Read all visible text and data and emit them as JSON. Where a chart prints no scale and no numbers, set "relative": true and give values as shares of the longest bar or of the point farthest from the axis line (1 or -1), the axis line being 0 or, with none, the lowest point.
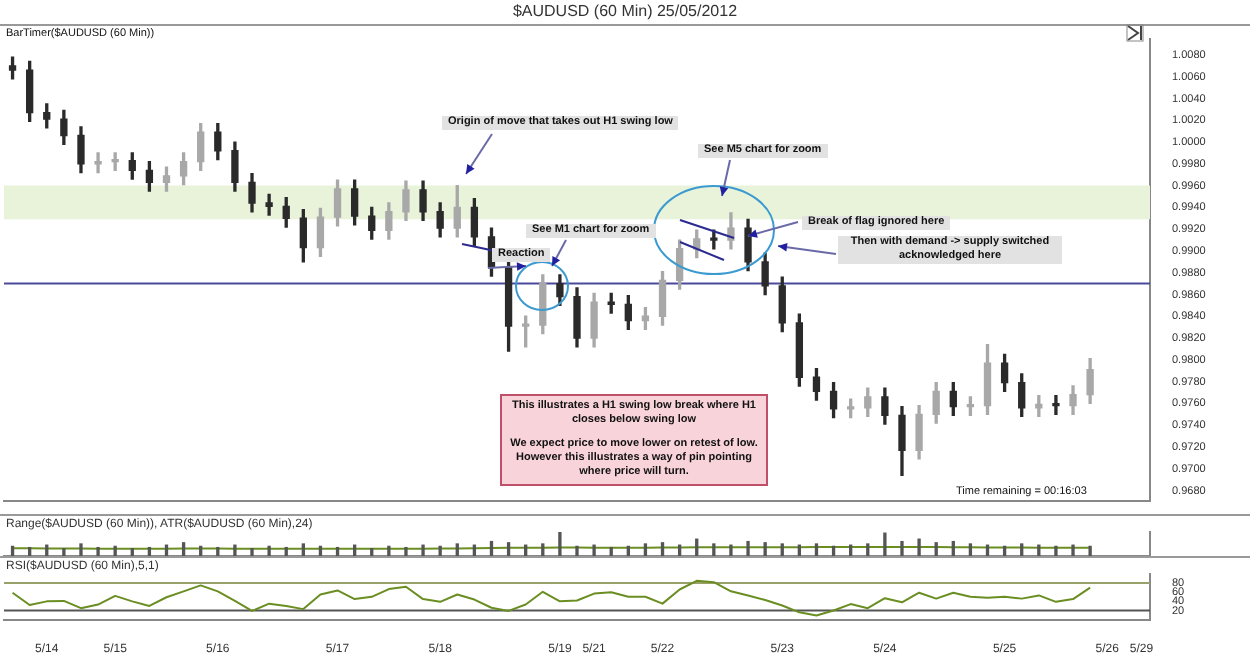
{
  "chart_data": [
    {
      "type": "candlestick",
      "title": "$AUDUSD (60 Min)  25/05/2012",
      "tick_labels": "y",
      "ylim": [
        0.967,
        1.0095
      ],
      "categories": [
        null,
        null,
        null,
        null,
        null,
        null,
        null,
        null,
        null,
        null,
        null,
        null,
        null,
        null,
        null,
        null,
        null,
        null,
        null,
        null,
        null,
        null,
        null,
        null,
        null,
        null,
        null,
        null,
        null,
        null,
        null,
        null,
        null,
        null,
        null,
        null,
        null,
        null,
        null,
        null,
        null,
        null,
        null,
        null,
        null,
        null,
        null,
        null,
        null,
        null,
        null,
        null,
        null,
        null,
        null,
        null,
        null,
        null,
        null,
        null,
        null,
        null,
        null,
        null,
        null,
        null,
        null
      ],
      "yticks": [
        {
          "value": 0.968,
          "label": "0.9680"
        },
        {
          "value": 0.97,
          "label": "0.9700"
        },
        {
          "value": 0.972,
          "label": "0.9720"
        },
        {
          "value": 0.974,
          "label": "0.9740"
        },
        {
          "value": 0.976,
          "label": "0.9760"
        },
        {
          "value": 0.978,
          "label": "0.9780"
        },
        {
          "value": 0.98,
          "label": "0.9800"
        },
        {
          "value": 0.982,
          "label": "0.9820"
        },
        {
          "value": 0.984,
          "label": "0.9840"
        },
        {
          "value": 0.986,
          "label": "0.9860"
        },
        {
          "value": 0.988,
          "label": "0.9880"
        },
        {
          "value": 0.99,
          "label": "0.9900"
        },
        {
          "value": 0.992,
          "label": "0.9920"
        },
        {
          "value": 0.994,
          "label": "0.9940"
        },
        {
          "value": 0.996,
          "label": "0.9960"
        },
        {
          "value": 0.998,
          "label": "0.9980"
        },
        {
          "value": 1.0,
          "label": "1.0000"
        },
        {
          "value": 1.002,
          "label": "1.0020"
        },
        {
          "value": 1.004,
          "label": "1.0040"
        },
        {
          "value": 1.006,
          "label": "1.0060"
        },
        {
          "value": 1.008,
          "label": "1.0080"
        }
      ],
      "ohlc": [
        [
          1.007,
          1.0078,
          1.0058,
          1.0066
        ],
        [
          1.0066,
          1.0074,
          1.0019,
          1.0027
        ],
        [
          1.0027,
          1.0035,
          1.0013,
          1.0021
        ],
        [
          1.0021,
          1.0029,
          0.9998,
          1.0006
        ],
        [
          1.0006,
          1.0014,
          0.9972,
          0.998
        ],
        [
          0.998,
          0.999,
          0.9972,
          0.9982
        ],
        [
          0.9982,
          0.999,
          0.9974,
          0.9983
        ],
        [
          0.9983,
          0.999,
          0.9966,
          0.9974
        ],
        [
          0.9974,
          0.9982,
          0.9955,
          0.9963
        ],
        [
          0.9963,
          0.9977,
          0.9955,
          0.9969
        ],
        [
          0.9969,
          0.999,
          0.9961,
          0.9982
        ],
        [
          0.9982,
          1.0017,
          0.9974,
          1.0009
        ],
        [
          1.0009,
          1.0017,
          0.9984,
          0.9992
        ],
        [
          0.9992,
          1.0,
          0.9955,
          0.9963
        ],
        [
          0.9963,
          0.9971,
          0.9936,
          0.9944
        ],
        [
          0.9944,
          0.9952,
          0.9933,
          0.9941
        ],
        [
          0.9941,
          0.9949,
          0.9922,
          0.993
        ],
        [
          0.993,
          0.9938,
          0.989,
          0.9903
        ],
        [
          0.9903,
          0.9939,
          0.9895,
          0.9931
        ],
        [
          0.9931,
          0.9965,
          0.9923,
          0.9957
        ],
        [
          0.9957,
          0.9965,
          0.9924,
          0.9932
        ],
        [
          0.9932,
          0.994,
          0.9911,
          0.9919
        ],
        [
          0.9919,
          0.9944,
          0.9911,
          0.9936
        ],
        [
          0.9936,
          0.9964,
          0.9928,
          0.9956
        ],
        [
          0.9956,
          0.9964,
          0.9928,
          0.9936
        ],
        [
          0.9936,
          0.9944,
          0.9913,
          0.9921
        ],
        [
          0.9921,
          0.996,
          0.9913,
          0.994
        ],
        [
          0.994,
          0.9948,
          0.9905,
          0.9913
        ],
        [
          0.9913,
          0.9921,
          0.9877,
          0.9885
        ],
        [
          0.9885,
          0.9893,
          0.9808,
          0.9831
        ],
        [
          0.9831,
          0.984,
          0.9812,
          0.9832
        ],
        [
          0.9832,
          0.9878,
          0.9824,
          0.987
        ],
        [
          0.987,
          0.9878,
          0.985,
          0.9858
        ],
        [
          0.9858,
          0.9866,
          0.9812,
          0.982
        ],
        [
          0.982,
          0.9861,
          0.9812,
          0.9853
        ],
        [
          0.9853,
          0.9861,
          0.9843,
          0.9851
        ],
        [
          0.9851,
          0.9859,
          0.9828,
          0.9836
        ],
        [
          0.9836,
          0.9848,
          0.9828,
          0.984
        ],
        [
          0.984,
          0.9881,
          0.9832,
          0.9873
        ],
        [
          0.9873,
          0.991,
          0.9865,
          0.9902
        ],
        [
          0.9902,
          0.9919,
          0.9894,
          0.9911
        ],
        [
          0.9911,
          0.9919,
          0.9902,
          0.991
        ],
        [
          0.991,
          0.9935,
          0.9902,
          0.9921
        ],
        [
          0.9921,
          0.9929,
          0.9882,
          0.989
        ],
        [
          0.989,
          0.9898,
          0.986,
          0.9868
        ],
        [
          0.9868,
          0.9876,
          0.9826,
          0.9834
        ],
        [
          0.9834,
          0.9842,
          0.9776,
          0.9784
        ],
        [
          0.9784,
          0.9792,
          0.9763,
          0.9771
        ],
        [
          0.9771,
          0.9779,
          0.9747,
          0.9755
        ],
        [
          0.9755,
          0.9764,
          0.9747,
          0.9756
        ],
        [
          0.9756,
          0.9774,
          0.9748,
          0.9766
        ],
        [
          0.9766,
          0.9774,
          0.9741,
          0.9749
        ],
        [
          0.9749,
          0.9757,
          0.9694,
          0.9717
        ],
        [
          0.9717,
          0.9758,
          0.9709,
          0.975
        ],
        [
          0.975,
          0.9779,
          0.9742,
          0.9771
        ],
        [
          0.9771,
          0.9779,
          0.9749,
          0.9757
        ],
        [
          0.9757,
          0.9766,
          0.9749,
          0.9758
        ],
        [
          0.9758,
          0.9814,
          0.975,
          0.9797
        ],
        [
          0.9797,
          0.9805,
          0.9771,
          0.9779
        ],
        [
          0.9779,
          0.9787,
          0.9748,
          0.9756
        ],
        [
          0.9756,
          0.9767,
          0.9748,
          0.9759
        ],
        [
          0.9759,
          0.9767,
          0.975,
          0.9758
        ],
        [
          0.9758,
          0.9776,
          0.975,
          0.9768
        ],
        [
          0.9768,
          0.9801,
          0.976,
          0.9791
        ],
        null,
        null,
        null
      ],
      "colors": [
        "#2a2a2a",
        "#2a2a2a",
        "#2a2a2a",
        "#2a2a2a",
        "#2a2a2a",
        "#a8a8a8",
        "#a8a8a8",
        "#2a2a2a",
        "#2a2a2a",
        "#a8a8a8",
        "#a8a8a8",
        "#a8a8a8",
        "#2a2a2a",
        "#2a2a2a",
        "#2a2a2a",
        "#2a2a2a",
        "#2a2a2a",
        "#2a2a2a",
        "#a8a8a8",
        "#a8a8a8",
        "#2a2a2a",
        "#2a2a2a",
        "#a8a8a8",
        "#a8a8a8",
        "#2a2a2a",
        "#2a2a2a",
        "#a8a8a8",
        "#2a2a2a",
        "#2a2a2a",
        "#2a2a2a",
        "#a8a8a8",
        "#a8a8a8",
        "#2a2a2a",
        "#2a2a2a",
        "#a8a8a8",
        "#2a2a2a",
        "#2a2a2a",
        "#a8a8a8",
        "#a8a8a8",
        "#a8a8a8",
        "#a8a8a8",
        "#2a2a2a",
        "#a8a8a8",
        "#2a2a2a",
        "#2a2a2a",
        "#2a2a2a",
        "#2a2a2a",
        "#2a2a2a",
        "#2a2a2a",
        "#a8a8a8",
        "#a8a8a8",
        "#2a2a2a",
        "#2a2a2a",
        "#a8a8a8",
        "#a8a8a8",
        "#2a2a2a",
        "#a8a8a8",
        "#a8a8a8",
        "#2a2a2a",
        "#2a2a2a",
        "#a8a8a8",
        "#2a2a2a",
        "#a8a8a8",
        "#a8a8a8",
        null,
        null,
        null
      ],
      "ref_lines": [
        {
          "axis": "y",
          "value": 0.987,
          "color": "#4a4a9a"
        }
      ],
      "bands": [
        {
          "axis": "y",
          "from": 0.9929,
          "to": 0.996,
          "color": "#e8f3da"
        }
      ],
      "annotations": [
        "BarTimer($AUDUSD (60 Min))",
        "Time remaining = 00:16:03",
        "Origin of move that takes out H1 swing low",
        "See M5 chart for zoom",
        "See M1 chart for zoom",
        "Reaction",
        "Break of flag ignored here",
        "Then with demand -> supply switched acknowledged here",
        "This illustrates a H1 swing low break where H1 closes below swing low",
        "We expect price to move lower on retest of low. However this illustrates a way of pin pointing where price will turn."
      ]
    },
    {
      "type": "bar",
      "title": "Range($AUDUSD (60 Min)), ATR($AUDUSD (60 Min),24)",
      "relative": true,
      "tick_labels": false,
      "categories": [
        null,
        null,
        null,
        null,
        null,
        null,
        null,
        null,
        null,
        null,
        null,
        null,
        null,
        null,
        null,
        null,
        null,
        null,
        null,
        null,
        null,
        null,
        null,
        null,
        null,
        null,
        null,
        null,
        null,
        null,
        null,
        null,
        null,
        null,
        null,
        null,
        null,
        null,
        null,
        null,
        null,
        null,
        null,
        null,
        null,
        null,
        null,
        null,
        null,
        null,
        null,
        null,
        null,
        null,
        null,
        null,
        null,
        null,
        null,
        null,
        null,
        null,
        null,
        null,
        null,
        null,
        null
      ],
      "series": [
        {
          "color": "#555555",
          "values": [
            0.4,
            0.35,
            0.45,
            0.3,
            0.5,
            0.35,
            0.4,
            0.3,
            0.35,
            0.45,
            0.55,
            0.4,
            0.35,
            0.45,
            0.3,
            0.4,
            0.35,
            0.5,
            0.4,
            0.35,
            0.45,
            0.3,
            0.4,
            0.35,
            0.45,
            0.4,
            0.5,
            0.45,
            0.6,
            0.55,
            0.45,
            0.5,
            1.0,
            0.4,
            0.45,
            0.35,
            0.4,
            0.5,
            0.55,
            0.45,
            0.7,
            0.5,
            0.45,
            0.6,
            0.55,
            0.5,
            0.45,
            0.5,
            0.4,
            0.45,
            0.5,
            0.95,
            0.6,
            0.7,
            0.55,
            0.6,
            0.5,
            0.45,
            0.4,
            0.5,
            0.45,
            0.4,
            0.45,
            0.4,
            null,
            null,
            null
          ]
        },
        {
          "type": "line",
          "color": "#6b8e23",
          "values": [
            0.32,
            0.32,
            0.31,
            0.31,
            0.31,
            0.3,
            0.3,
            0.3,
            0.3,
            0.3,
            0.31,
            0.31,
            0.31,
            0.3,
            0.3,
            0.3,
            0.3,
            0.3,
            0.3,
            0.3,
            0.3,
            0.3,
            0.3,
            0.3,
            0.3,
            0.31,
            0.31,
            0.32,
            0.33,
            0.34,
            0.34,
            0.34,
            0.35,
            0.35,
            0.34,
            0.34,
            0.34,
            0.34,
            0.35,
            0.35,
            0.36,
            0.36,
            0.36,
            0.36,
            0.36,
            0.36,
            0.36,
            0.37,
            0.37,
            0.37,
            0.37,
            0.38,
            0.37,
            0.37,
            0.37,
            0.36,
            0.36,
            0.35,
            0.35,
            0.35,
            0.34,
            0.34,
            0.34,
            0.34,
            null,
            null,
            null
          ]
        }
      ]
    },
    {
      "type": "line",
      "title": "RSI($AUDUSD (60 Min),5,1)",
      "color": "#6b8e23",
      "ylim": [
        0,
        100
      ],
      "yticks": [
        20,
        40,
        60,
        80
      ],
      "categories": [
        null,
        null,
        "5/14",
        null,
        null,
        null,
        "5/15",
        null,
        null,
        null,
        null,
        null,
        "5/16",
        null,
        null,
        null,
        null,
        null,
        null,
        "5/17",
        null,
        null,
        null,
        null,
        null,
        "5/18",
        null,
        null,
        null,
        null,
        null,
        null,
        "5/19",
        null,
        "5/21",
        null,
        null,
        null,
        "5/22",
        null,
        null,
        null,
        null,
        null,
        null,
        "5/23",
        null,
        null,
        null,
        null,
        null,
        "5/24",
        null,
        null,
        null,
        null,
        null,
        null,
        "5/25",
        null,
        null,
        null,
        null,
        null,
        "5/26",
        null,
        "5/29"
      ],
      "values": [
        59,
        32,
        40,
        41,
        25,
        33,
        52,
        40,
        30,
        49,
        62,
        75,
        62,
        41,
        19,
        35,
        30,
        23,
        55,
        64,
        45,
        50,
        67,
        72,
        45,
        39,
        55,
        44,
        26,
        19,
        33,
        61,
        40,
        42,
        57,
        60,
        50,
        50,
        35,
        66,
        85,
        82,
        62,
        53,
        43,
        31,
        16,
        9,
        20,
        34,
        25,
        47,
        38,
        59,
        46,
        59,
        50,
        48,
        50,
        46,
        53,
        39,
        45,
        70,
        null,
        null,
        null
      ],
      "ref_lines": [
        {
          "axis": "y",
          "value": 80,
          "color": "#9aa06a"
        },
        {
          "axis": "y",
          "value": 20,
          "color": "#555555"
        }
      ]
    }
  ]
}
